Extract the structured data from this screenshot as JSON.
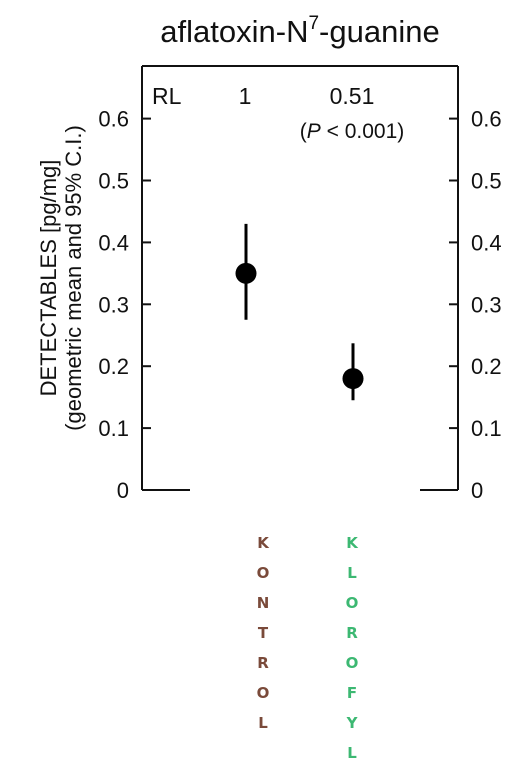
{
  "chart_data": {
    "type": "scatter",
    "title_prefix": "aflatoxin-N",
    "title_superscript": "7",
    "title_suffix": "-guanine",
    "ylabel_line1": "DETECTABLES [pg/mg]",
    "ylabel_line2": "(geometric mean and 95% C.I.)",
    "ylim": [
      0,
      0.65
    ],
    "yticks": [
      "0",
      "0.1",
      "0.2",
      "0.3",
      "0.4",
      "0.5",
      "0.6"
    ],
    "ytick_values": [
      0,
      0.1,
      0.2,
      0.3,
      0.4,
      0.5,
      0.6
    ],
    "grid": false,
    "groups": [
      {
        "name": "KONTROL",
        "letters": [
          "K",
          "O",
          "N",
          "T",
          "R",
          "O",
          "L"
        ],
        "color": "#7a4a3a",
        "mean": 0.35,
        "ci_low": 0.275,
        "ci_high": 0.43,
        "rl": "1"
      },
      {
        "name": "KLOROFYL",
        "letters": [
          "K",
          "L",
          "O",
          "R",
          "O",
          "F",
          "Y",
          "L"
        ],
        "color": "#3cb872",
        "mean": 0.18,
        "ci_low": 0.145,
        "ci_high": 0.237,
        "rl": "0.51",
        "p_prefix": "(",
        "p_symbol": "P",
        "p_suffix": " < 0.001)"
      }
    ],
    "rl_label": "RL"
  }
}
